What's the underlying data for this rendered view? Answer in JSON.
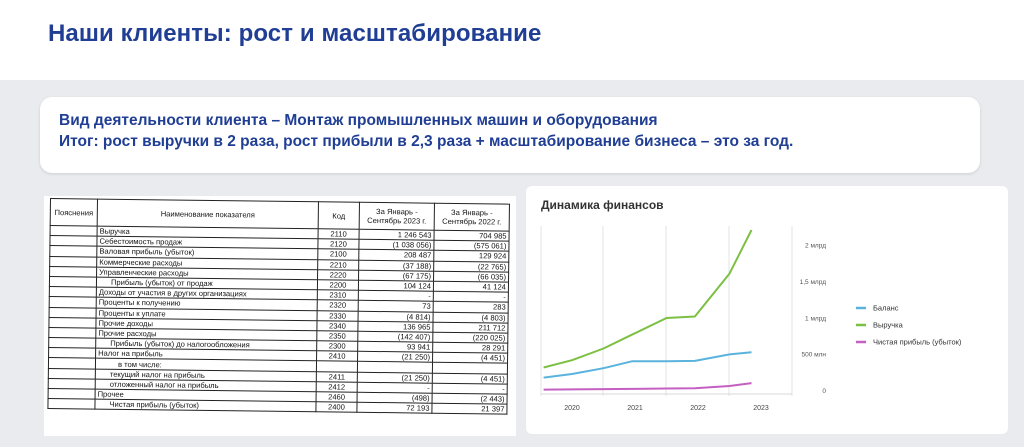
{
  "page": {
    "title": "Наши клиенты: рост и масштабирование"
  },
  "info": {
    "line1": "Вид деятельности клиента – Монтаж промышленных машин и оборудования",
    "line2": "Итог: рост выручки в 2 раза, рост прибыли в 2,3 раза + масштабирование бизнеса – это за год."
  },
  "table": {
    "headers": {
      "note": "Пояснения",
      "name": "Наименование показателя",
      "code": "Код",
      "v2023": "За Январь - Сентябрь 2023 г.",
      "v2022": "За Январь - Сентябрь 2022 г."
    },
    "rows": [
      {
        "name": "Выручка",
        "code": "2110",
        "v2023": "1 246 543",
        "v2022": "704 985",
        "indent": 0
      },
      {
        "name": "Себестоимость продаж",
        "code": "2120",
        "v2023": "(1 038 056)",
        "v2022": "(575 061)",
        "indent": 0
      },
      {
        "name": "Валовая прибыль (убыток)",
        "code": "2100",
        "v2023": "208 487",
        "v2022": "129 924",
        "indent": 0
      },
      {
        "name": "Коммерческие расходы",
        "code": "2210",
        "v2023": "(37 188)",
        "v2022": "(22 765)",
        "indent": 0
      },
      {
        "name": "Управленческие расходы",
        "code": "2220",
        "v2023": "(67 175)",
        "v2022": "(66 035)",
        "indent": 0
      },
      {
        "name": "Прибыль (убыток) от продаж",
        "code": "2200",
        "v2023": "104 124",
        "v2022": "41 124",
        "indent": 1
      },
      {
        "name": "Доходы от участия в других организациях",
        "code": "2310",
        "v2023": "-",
        "v2022": "-",
        "indent": 0
      },
      {
        "name": "Проценты к получению",
        "code": "2320",
        "v2023": "73",
        "v2022": "283",
        "indent": 0
      },
      {
        "name": "Проценты к уплате",
        "code": "2330",
        "v2023": "(4 814)",
        "v2022": "(4 803)",
        "indent": 0
      },
      {
        "name": "Прочие доходы",
        "code": "2340",
        "v2023": "136 965",
        "v2022": "211 712",
        "indent": 0
      },
      {
        "name": "Прочие расходы",
        "code": "2350",
        "v2023": "(142 407)",
        "v2022": "(220 025)",
        "indent": 0
      },
      {
        "name": "Прибыль (убыток) до налогообложения",
        "code": "2300",
        "v2023": "93 941",
        "v2022": "28 291",
        "indent": 1
      },
      {
        "name": "Налог на прибыль",
        "code": "2410",
        "v2023": "(21 250)",
        "v2022": "(4 451)",
        "indent": 0
      },
      {
        "name": "в том числе:",
        "code": "",
        "v2023": "",
        "v2022": "",
        "indent": 2
      },
      {
        "name": "текущий налог на прибыль",
        "code": "2411",
        "v2023": "(21 250)",
        "v2022": "(4 451)",
        "indent": 1
      },
      {
        "name": "отложенный налог на прибыль",
        "code": "2412",
        "v2023": "-",
        "v2022": "-",
        "indent": 1
      },
      {
        "name": "Прочее",
        "code": "2460",
        "v2023": "(498)",
        "v2022": "(2 443)",
        "indent": 0
      },
      {
        "name": "Чистая прибыль (убыток)",
        "code": "2400",
        "v2023": "72 193",
        "v2022": "21 397",
        "indent": 1
      }
    ]
  },
  "chart_data": {
    "type": "line",
    "title": "Динамика финансов",
    "x": [
      "2020",
      "2021",
      "2022",
      "2023"
    ],
    "y_ticks": [
      "0",
      "500 млн",
      "1 млрд",
      "1,5 млрд",
      "2 млрд"
    ],
    "ylim": [
      0,
      2200000000
    ],
    "grid": true,
    "legend_position": "right",
    "series": [
      {
        "name": "Баланс",
        "color": "#5ab3dd",
        "points": [
          [
            2019.55,
            170000000
          ],
          [
            2020.0,
            220000000
          ],
          [
            2020.5,
            300000000
          ],
          [
            2020.95,
            395000000
          ],
          [
            2021.5,
            395000000
          ],
          [
            2021.95,
            400000000
          ],
          [
            2022.5,
            490000000
          ],
          [
            2022.85,
            520000000
          ]
        ]
      },
      {
        "name": "Выручка",
        "color": "#7cc043",
        "points": [
          [
            2019.55,
            310000000
          ],
          [
            2020.0,
            410000000
          ],
          [
            2020.5,
            570000000
          ],
          [
            2020.95,
            760000000
          ],
          [
            2021.5,
            990000000
          ],
          [
            2021.95,
            1010000000
          ],
          [
            2022.5,
            1600000000
          ],
          [
            2022.85,
            2200000000
          ]
        ]
      },
      {
        "name": "Чистая прибыль (убыток)",
        "color": "#c55fc2",
        "points": [
          [
            2019.55,
            5000000
          ],
          [
            2020.0,
            8000000
          ],
          [
            2020.5,
            12000000
          ],
          [
            2020.95,
            15000000
          ],
          [
            2021.5,
            20000000
          ],
          [
            2021.95,
            25000000
          ],
          [
            2022.5,
            55000000
          ],
          [
            2022.85,
            95000000
          ]
        ]
      }
    ]
  }
}
